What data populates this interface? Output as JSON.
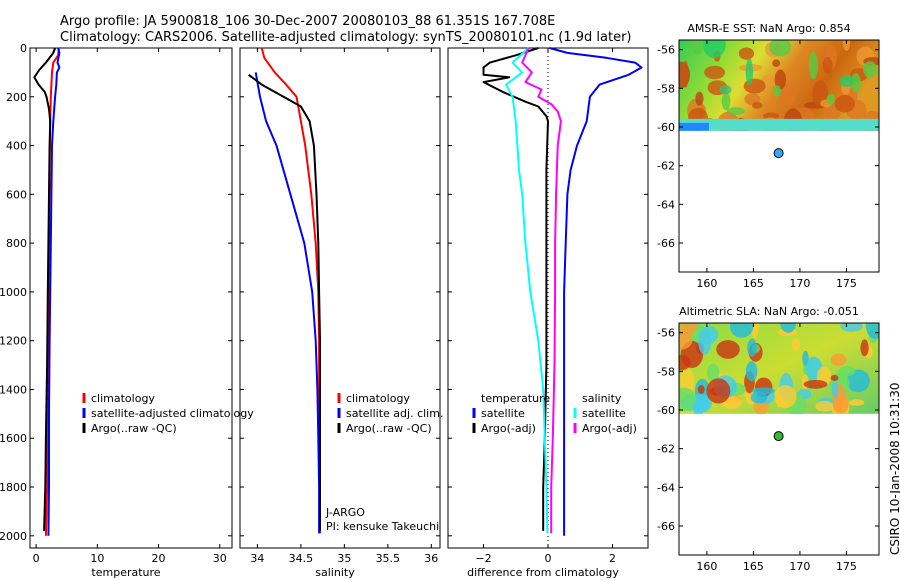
{
  "header": {
    "line1": "Argo profile: JA 5900818_106 30-Dec-2007 20080103_88 61.351S 167.708E",
    "line2": "Climatology: CARS2006. Satellite-adjusted climatology: synTS_20080101.nc (1.9d later)"
  },
  "stamp": "CSIRO 10-Jan-2008 10:31:30",
  "colors": {
    "climatology": "#ff0000",
    "satellite": "#0000ff",
    "argo": "#000000",
    "sat_sal": "#00ffff",
    "argo_sal": "#ff00ff"
  },
  "chart_data": [
    {
      "id": "temperature",
      "type": "line",
      "xlabel": "temperature",
      "xlim": [
        -1,
        32
      ],
      "ylim": [
        2050,
        0
      ],
      "xticks": [
        0,
        10,
        20,
        30
      ],
      "yticks": [
        0,
        200,
        400,
        600,
        800,
        1000,
        1200,
        1400,
        1600,
        1800,
        2000
      ],
      "legend": [
        "climatology",
        "satellite-adjusted climatology",
        "Argo(..raw -QC)"
      ],
      "series": [
        {
          "name": "climatology",
          "color": "#ff0000",
          "points": [
            [
              3.7,
              0
            ],
            [
              3.6,
              30
            ],
            [
              2.8,
              60
            ],
            [
              2.6,
              100
            ],
            [
              2.4,
              200
            ],
            [
              2.3,
              300
            ],
            [
              2.2,
              500
            ],
            [
              2.1,
              800
            ],
            [
              2.0,
              1200
            ],
            [
              1.9,
              1500
            ],
            [
              1.8,
              1800
            ],
            [
              1.6,
              2000
            ]
          ]
        },
        {
          "name": "satellite-adjusted climatology",
          "color": "#0000ff",
          "points": [
            [
              3.6,
              0
            ],
            [
              3.8,
              20
            ],
            [
              3.5,
              60
            ],
            [
              3.8,
              80
            ],
            [
              3.4,
              100
            ],
            [
              3.3,
              150
            ],
            [
              3.1,
              200
            ],
            [
              2.8,
              300
            ],
            [
              2.6,
              400
            ],
            [
              2.5,
              600
            ],
            [
              2.4,
              800
            ],
            [
              2.3,
              1000
            ],
            [
              2.2,
              1200
            ],
            [
              2.1,
              1500
            ],
            [
              2.1,
              1800
            ],
            [
              2.0,
              2000
            ]
          ]
        },
        {
          "name": "Argo(..raw -QC)",
          "color": "#000000",
          "points": [
            [
              3.1,
              0
            ],
            [
              2.8,
              20
            ],
            [
              1.6,
              60
            ],
            [
              0.5,
              90
            ],
            [
              -0.3,
              120
            ],
            [
              0.4,
              150
            ],
            [
              1.4,
              180
            ],
            [
              1.7,
              200
            ],
            [
              2.1,
              250
            ],
            [
              2.3,
              300
            ],
            [
              2.2,
              400
            ],
            [
              2.1,
              600
            ],
            [
              2.0,
              800
            ],
            [
              1.9,
              1000
            ],
            [
              1.8,
              1300
            ],
            [
              1.6,
              1600
            ],
            [
              1.5,
              1800
            ],
            [
              1.3,
              1980
            ]
          ]
        }
      ]
    },
    {
      "id": "salinity",
      "type": "line",
      "xlabel": "salinity",
      "xlim": [
        33.8,
        36.1
      ],
      "ylim": [
        2050,
        0
      ],
      "xticks": [
        34,
        34.5,
        35,
        35.5,
        36
      ],
      "xticklabels": [
        "34",
        "34.5",
        "35",
        "35.5",
        "36"
      ],
      "legend": [
        "climatology",
        "satellite adj. clim.",
        "Argo(..raw -QC)"
      ],
      "annotations": [
        "J-ARGO",
        "PI: kensuke Takeuchi"
      ],
      "series": [
        {
          "name": "climatology",
          "color": "#ff0000",
          "points": [
            [
              34.05,
              0
            ],
            [
              34.08,
              40
            ],
            [
              34.2,
              100
            ],
            [
              34.33,
              150
            ],
            [
              34.45,
              200
            ],
            [
              34.5,
              300
            ],
            [
              34.55,
              400
            ],
            [
              34.62,
              600
            ],
            [
              34.67,
              800
            ],
            [
              34.7,
              1000
            ],
            [
              34.71,
              1200
            ],
            [
              34.71,
              1500
            ],
            [
              34.72,
              1800
            ],
            [
              34.72,
              1990
            ]
          ]
        },
        {
          "name": "satellite adj. clim.",
          "color": "#0000ff",
          "points": [
            [
              33.98,
              100
            ],
            [
              34.03,
              200
            ],
            [
              34.1,
              300
            ],
            [
              34.22,
              400
            ],
            [
              34.38,
              600
            ],
            [
              34.54,
              800
            ],
            [
              34.63,
              1000
            ],
            [
              34.67,
              1200
            ],
            [
              34.69,
              1400
            ],
            [
              34.7,
              1600
            ],
            [
              34.71,
              1800
            ],
            [
              34.71,
              1990
            ]
          ]
        },
        {
          "name": "Argo(..raw -QC)",
          "color": "#000000",
          "points": [
            [
              33.9,
              110
            ],
            [
              34.05,
              150
            ],
            [
              34.3,
              200
            ],
            [
              34.5,
              240
            ],
            [
              34.6,
              300
            ],
            [
              34.65,
              400
            ],
            [
              34.68,
              600
            ],
            [
              34.7,
              800
            ],
            [
              34.71,
              1000
            ],
            [
              34.72,
              1200
            ],
            [
              34.72,
              1500
            ],
            [
              34.72,
              1800
            ],
            [
              34.72,
              1980
            ]
          ]
        }
      ]
    },
    {
      "id": "difference",
      "type": "line",
      "xlabel": "difference from climatology",
      "xlim": [
        -3.1,
        3.1
      ],
      "ylim": [
        2050,
        0
      ],
      "xticks": [
        -2,
        0,
        2
      ],
      "xticklabels": [
        "−2",
        "0",
        "2"
      ],
      "legend_titles": [
        "temperature",
        "salinity"
      ],
      "legend_left": [
        "satellite",
        "Argo(-adj)"
      ],
      "legend_right": [
        "satellite",
        "Argo(-adj)"
      ],
      "series": [
        {
          "name": "temperature satellite",
          "color": "#0000ff",
          "points": [
            [
              0.05,
              0
            ],
            [
              0.6,
              20
            ],
            [
              1.8,
              40
            ],
            [
              2.7,
              60
            ],
            [
              2.9,
              80
            ],
            [
              2.5,
              110
            ],
            [
              1.6,
              150
            ],
            [
              1.3,
              200
            ],
            [
              1.2,
              300
            ],
            [
              0.9,
              400
            ],
            [
              0.7,
              500
            ],
            [
              0.6,
              600
            ],
            [
              0.55,
              800
            ],
            [
              0.5,
              1000
            ],
            [
              0.5,
              1200
            ],
            [
              0.5,
              1500
            ],
            [
              0.5,
              1800
            ],
            [
              0.5,
              2000
            ]
          ]
        },
        {
          "name": "temperature Argo(-adj)",
          "color": "#000000",
          "points": [
            [
              -0.3,
              0
            ],
            [
              -1.0,
              30
            ],
            [
              -1.8,
              60
            ],
            [
              -2.0,
              80
            ],
            [
              -2.0,
              110
            ],
            [
              -1.2,
              120
            ],
            [
              -2.0,
              140
            ],
            [
              -1.4,
              180
            ],
            [
              -0.7,
              220
            ],
            [
              -0.3,
              240
            ],
            [
              -0.05,
              280
            ],
            [
              0,
              300
            ],
            [
              -0.05,
              500
            ],
            [
              -0.05,
              800
            ],
            [
              -0.05,
              1000
            ],
            [
              -0.05,
              1300
            ],
            [
              -0.1,
              1600
            ],
            [
              -0.15,
              1800
            ],
            [
              -0.15,
              1980
            ]
          ]
        },
        {
          "name": "salinity satellite",
          "color": "#00ffff",
          "points": [
            [
              -0.6,
              0
            ],
            [
              -1.1,
              60
            ],
            [
              -0.8,
              100
            ],
            [
              -1.3,
              150
            ],
            [
              -1.1,
              200
            ],
            [
              -1.0,
              300
            ],
            [
              -0.95,
              400
            ],
            [
              -0.9,
              500
            ],
            [
              -0.8,
              600
            ],
            [
              -0.7,
              800
            ],
            [
              -0.55,
              1000
            ],
            [
              -0.3,
              1200
            ],
            [
              -0.15,
              1400
            ],
            [
              -0.1,
              1600
            ],
            [
              -0.05,
              1800
            ],
            [
              -0.02,
              1990
            ]
          ]
        },
        {
          "name": "salinity Argo(-adj)",
          "color": "#ff00ff",
          "points": [
            [
              -0.6,
              0
            ],
            [
              -0.8,
              60
            ],
            [
              -0.5,
              100
            ],
            [
              -0.7,
              140
            ],
            [
              -0.2,
              170
            ],
            [
              -0.3,
              200
            ],
            [
              0.1,
              230
            ],
            [
              0.3,
              260
            ],
            [
              0.4,
              300
            ],
            [
              0.3,
              400
            ],
            [
              0.25,
              600
            ],
            [
              0.22,
              800
            ],
            [
              0.22,
              1000
            ],
            [
              0.2,
              1300
            ],
            [
              0.15,
              1600
            ],
            [
              0.1,
              1800
            ],
            [
              0.1,
              1990
            ]
          ]
        }
      ]
    },
    {
      "id": "sst_map",
      "type": "heatmap",
      "title": "AMSR-E SST: NaN Argo: 0.854",
      "xlim": [
        157,
        178.5
      ],
      "ylim": [
        -67.5,
        -55.5
      ],
      "xticks": [
        160,
        165,
        170,
        175
      ],
      "yticks": [
        -56,
        -58,
        -60,
        -62,
        -64,
        -66
      ],
      "data_lat_min": -60.2,
      "marker": {
        "lon": 167.708,
        "lat": -61.351,
        "color": "#33aaff"
      }
    },
    {
      "id": "sla_map",
      "type": "heatmap",
      "title": "Altimetric SLA: NaN Argo: -0.051",
      "xlim": [
        157,
        178.5
      ],
      "ylim": [
        -67.5,
        -55.5
      ],
      "xticks": [
        160,
        165,
        170,
        175
      ],
      "yticks": [
        -56,
        -58,
        -60,
        -62,
        -64,
        -66
      ],
      "data_lat_min": -60.2,
      "marker": {
        "lon": 167.708,
        "lat": -61.351,
        "color": "#33bb33"
      }
    }
  ]
}
